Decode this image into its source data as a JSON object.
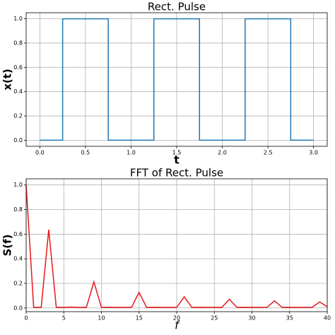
{
  "chart_data": [
    {
      "type": "line",
      "title": "Rect. Pulse",
      "xlabel": "t",
      "ylabel": "x(t)",
      "x": [
        0,
        0.25,
        0.25,
        0.75,
        0.75,
        1.25,
        1.25,
        1.75,
        1.75,
        2.25,
        2.25,
        2.75,
        2.75,
        3
      ],
      "values": [
        0,
        0,
        1,
        1,
        0,
        0,
        1,
        1,
        0,
        0,
        1,
        1,
        0,
        0
      ],
      "color": "#1f77b4",
      "xlim": [
        -0.15,
        3.15
      ],
      "ylim": [
        -0.05,
        1.05
      ],
      "xticks": [
        {
          "value": 0,
          "label": "0.0"
        },
        {
          "value": 0.5,
          "label": "0.5"
        },
        {
          "value": 1,
          "label": "1.0"
        },
        {
          "value": 1.5,
          "label": "1.5"
        },
        {
          "value": 2,
          "label": "2.0"
        },
        {
          "value": 2.5,
          "label": "2.5"
        },
        {
          "value": 3,
          "label": "3.0"
        }
      ],
      "yticks": [
        {
          "value": 0,
          "label": "0.0"
        },
        {
          "value": 0.2,
          "label": "0.2"
        },
        {
          "value": 0.4,
          "label": "0.4"
        },
        {
          "value": 0.6,
          "label": "0.6"
        },
        {
          "value": 0.8,
          "label": "0.8"
        },
        {
          "value": 1,
          "label": "1.0"
        }
      ],
      "grid": true
    },
    {
      "type": "line",
      "title": "FFT of Rect. Pulse",
      "xlabel": "f",
      "ylabel": "S(f)",
      "x": [
        0,
        1,
        2,
        3,
        4,
        5,
        6,
        7,
        8,
        9,
        10,
        11,
        12,
        13,
        14,
        15,
        16,
        17,
        18,
        19,
        20,
        21,
        22,
        23,
        24,
        25,
        26,
        27,
        28,
        29,
        30,
        31,
        32,
        33,
        34,
        35,
        36,
        37,
        38,
        39,
        40
      ],
      "values": [
        1.0,
        0.005,
        0.005,
        0.637,
        0.005,
        0.005,
        0.007,
        0.005,
        0.005,
        0.212,
        0.005,
        0.006,
        0.005,
        0.005,
        0.005,
        0.127,
        0.005,
        0.006,
        0.005,
        0.005,
        0.005,
        0.091,
        0.005,
        0.006,
        0.005,
        0.005,
        0.005,
        0.071,
        0.005,
        0.006,
        0.005,
        0.005,
        0.005,
        0.058,
        0.005,
        0.006,
        0.005,
        0.005,
        0.005,
        0.049,
        0.01
      ],
      "color": "#e8161b",
      "xlim": [
        0,
        40
      ],
      "ylim": [
        -0.03,
        1.05
      ],
      "xticks": [
        0,
        5,
        10,
        15,
        20,
        25,
        30,
        35,
        40
      ],
      "yticks": [
        {
          "value": 0,
          "label": "0.0"
        },
        {
          "value": 0.2,
          "label": "0.2"
        },
        {
          "value": 0.4,
          "label": "0.4"
        },
        {
          "value": 0.6,
          "label": "0.6"
        },
        {
          "value": 0.8,
          "label": "0.8"
        },
        {
          "value": 1,
          "label": "1.0"
        }
      ],
      "grid": true
    }
  ]
}
